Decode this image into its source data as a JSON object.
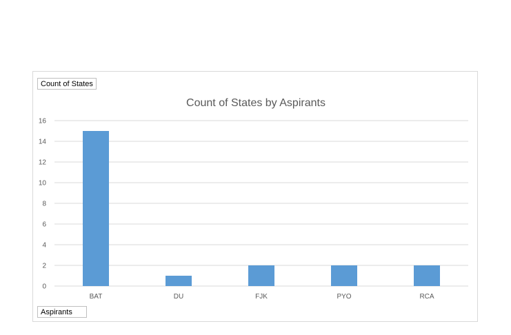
{
  "chart_data": {
    "type": "bar",
    "title": "Count of States by Aspirants",
    "categories": [
      "BAT",
      "DU",
      "FJK",
      "PYO",
      "RCA"
    ],
    "series": [
      {
        "values": [
          15,
          1,
          2,
          2,
          2
        ]
      }
    ],
    "ylim": [
      0,
      16
    ],
    "yticks": [
      0,
      2,
      4,
      6,
      8,
      10,
      12,
      14,
      16
    ],
    "grid": true,
    "legend": "none"
  },
  "field_buttons": {
    "values_field": "Count of States",
    "axis_field": "Aspirants"
  },
  "colors": {
    "bar": "#5b9bd5",
    "grid": "#d9d9d9",
    "text": "#595959"
  }
}
